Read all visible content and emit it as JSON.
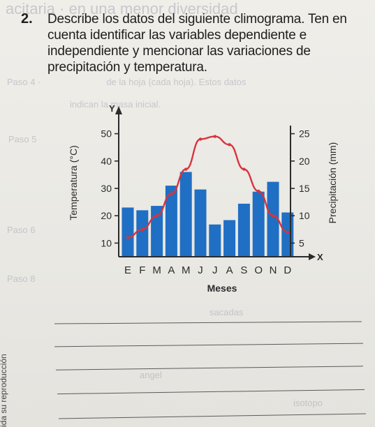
{
  "question": {
    "number": "2.",
    "text": "Describe los datos del siguiente climograma. Ten en cuenta identificar las variables dependiente e independiente y mencionar las variaciones de precipitación y temperatura."
  },
  "side_text": "ida su reproducción",
  "colors": {
    "bars": "#1f6fc4",
    "temperature_line": "#d8343e",
    "axes": "#2b2b2b"
  },
  "chart_data": {
    "type": "bar",
    "categories": [
      "E",
      "F",
      "M",
      "A",
      "M",
      "J",
      "J",
      "A",
      "S",
      "O",
      "N",
      "D"
    ],
    "xlabel": "Meses",
    "x_axis_name": "X",
    "y_axis_name": "Y",
    "left_axis": {
      "label": "Temperatura (°C)",
      "ticks": [
        10,
        20,
        30,
        40,
        50
      ],
      "range": [
        5,
        55
      ]
    },
    "right_axis": {
      "label": "Precipitación (mm)",
      "ticks": [
        5,
        10,
        15,
        20,
        25
      ],
      "range": [
        2.5,
        27.5
      ]
    },
    "series": [
      {
        "kind": "bar",
        "axis": "right",
        "values": [
          11.5,
          11,
          11.8,
          15.5,
          18,
          14.8,
          8.4,
          9.2,
          12.2,
          14.4,
          16.2,
          10.6
        ]
      },
      {
        "kind": "line",
        "axis": "left",
        "values": [
          12,
          15,
          20,
          28,
          37,
          48,
          49,
          46,
          37,
          29,
          20,
          14
        ]
      }
    ],
    "grid": false,
    "legend": "none"
  }
}
